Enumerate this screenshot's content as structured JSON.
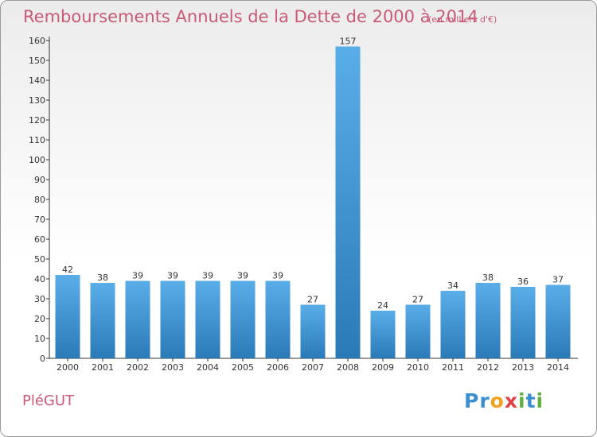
{
  "chart_data": {
    "type": "bar",
    "title": "Remboursements Annuels de la Dette de 2000 à 2014",
    "subtitle": "(en milliers d'€)",
    "categories": [
      "2000",
      "2001",
      "2002",
      "2003",
      "2004",
      "2005",
      "2006",
      "2007",
      "2008",
      "2009",
      "2010",
      "2011",
      "2012",
      "2013",
      "2014"
    ],
    "values": [
      42,
      38,
      39,
      39,
      39,
      39,
      39,
      27,
      157,
      24,
      27,
      34,
      38,
      36,
      37
    ],
    "ylim": [
      0,
      160
    ],
    "yticks": [
      0,
      10,
      20,
      30,
      40,
      50,
      60,
      70,
      80,
      90,
      100,
      110,
      120,
      130,
      140,
      150,
      160
    ],
    "grid": false,
    "bar_color_top": "#5aaee8",
    "bar_color_bottom": "#2a7ab8"
  },
  "footer": {
    "commune": "PléGUT",
    "logo_letters": [
      {
        "ch": "P",
        "color": "#3a8fd0"
      },
      {
        "ch": "r",
        "color": "#3a8fd0"
      },
      {
        "ch": "o",
        "color": "#f0a020"
      },
      {
        "ch": "x",
        "color": "#e04040"
      },
      {
        "ch": "i",
        "color": "#60b040"
      },
      {
        "ch": "t",
        "color": "#3a8fd0"
      },
      {
        "ch": "i",
        "color": "#60b040"
      }
    ]
  }
}
